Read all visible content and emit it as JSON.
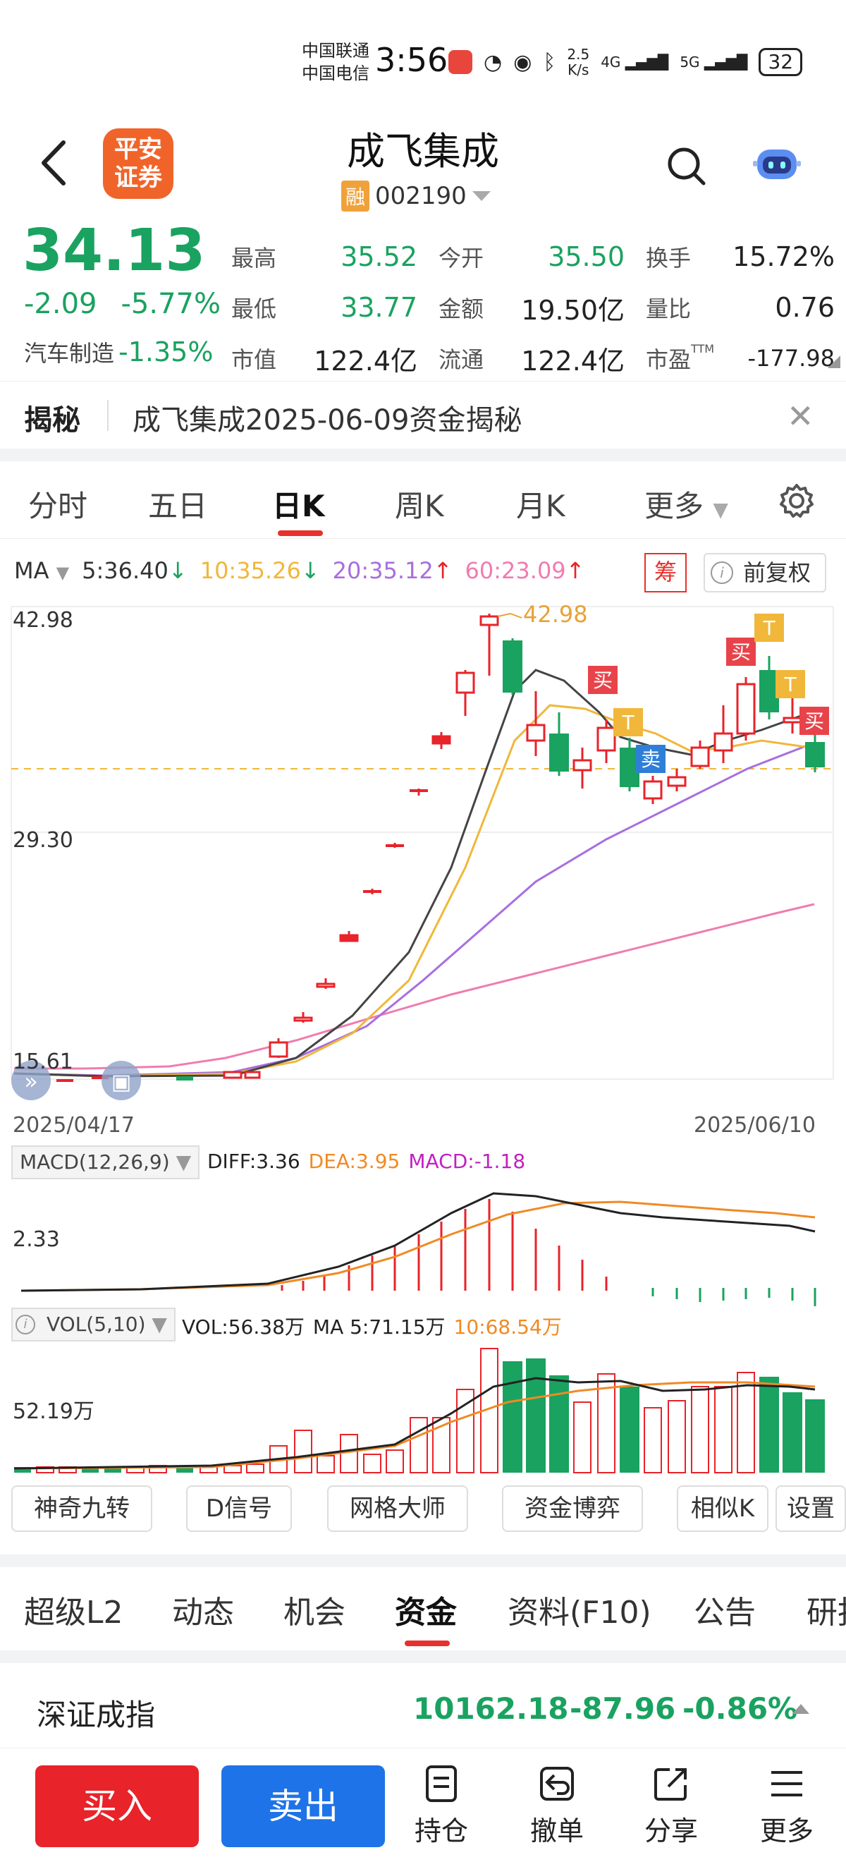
{
  "status_bar": {
    "carrier1": "中国联通",
    "carrier2": "中国电信",
    "time": "3:56",
    "net_speed": "2.5",
    "net_unit": "K/s",
    "signal1": "4G",
    "signal2": "5G",
    "battery": "32"
  },
  "header": {
    "logo_line1": "平安",
    "logo_line2": "证券",
    "stock_name": "成飞集成",
    "badge": "融",
    "stock_code": "002190"
  },
  "quote": {
    "price": "34.13",
    "change": "-2.09",
    "change_pct": "-5.77%",
    "sector_name": "汽车制造",
    "sector_change": "-1.35%",
    "grid": [
      [
        {
          "label": "最高",
          "value": "35.52",
          "green": true
        },
        {
          "label": "今开",
          "value": "35.50",
          "green": true
        },
        {
          "label": "换手",
          "value": "15.72%",
          "green": false
        }
      ],
      [
        {
          "label": "最低",
          "value": "33.77",
          "green": true
        },
        {
          "label": "金额",
          "value": "19.50亿",
          "green": false
        },
        {
          "label": "量比",
          "value": "0.76",
          "green": false
        }
      ],
      [
        {
          "label": "市值",
          "value": "122.4亿",
          "green": false
        },
        {
          "label": "流通",
          "value": "122.4亿",
          "green": false
        },
        {
          "label": "市盈",
          "value": "-177.98",
          "green": false,
          "sup": "TTM"
        }
      ]
    ]
  },
  "reveal": {
    "tag": "揭秘",
    "text": "成飞集成2025-06-09资金揭秘"
  },
  "chart_tabs": [
    "分时",
    "五日",
    "日K",
    "周K",
    "月K",
    "更多"
  ],
  "chart_tabs_active": 2,
  "ma": {
    "label": "MA",
    "ma5": "5:36.40",
    "ma10": "10:35.26",
    "ma20": "20:35.12",
    "ma60": "60:23.09",
    "chou": "筹",
    "fuquan": "前复权"
  },
  "kline": {
    "y_high": "42.98",
    "y_mid": "29.30",
    "y_low": "15.61",
    "peak_label": "42.98",
    "date_start": "2025/04/17",
    "date_end": "2025/06/10",
    "signals": {
      "buy": "买",
      "sell": "卖",
      "t": "T"
    }
  },
  "macd": {
    "label": "MACD(12,26,9)",
    "diff": "DIFF:3.36",
    "dea": "DEA:3.95",
    "macd": "MACD:-1.18",
    "axis": "2.33"
  },
  "vol": {
    "label": "VOL(5,10)",
    "vol": "VOL:56.38万",
    "ma5": "MA 5:71.15万",
    "ma10": "10:68.54万",
    "axis": "52.19万"
  },
  "tools": [
    "神奇九转",
    "D信号",
    "网格大师",
    "资金博弈",
    "相似K",
    "设置"
  ],
  "bottom_tabs": [
    "超级L2",
    "动态",
    "机会",
    "资金",
    "资料(F10)",
    "公告",
    "研报"
  ],
  "bottom_tabs_active": 3,
  "index": {
    "name": "深证成指",
    "value": "10162.18",
    "change": "-87.96",
    "change_pct": "-0.86%"
  },
  "actions": {
    "buy": "买入",
    "sell": "卖出",
    "hold": "持仓",
    "cancel": "撤单",
    "share": "分享",
    "more": "更多"
  },
  "colors": {
    "up": "#e8232a",
    "down": "#1aa260",
    "ma5": "#444444",
    "ma10": "#f0b73a",
    "ma20": "#a86ee0",
    "ma60": "#f07cb0",
    "accent": "#e9302a"
  }
}
